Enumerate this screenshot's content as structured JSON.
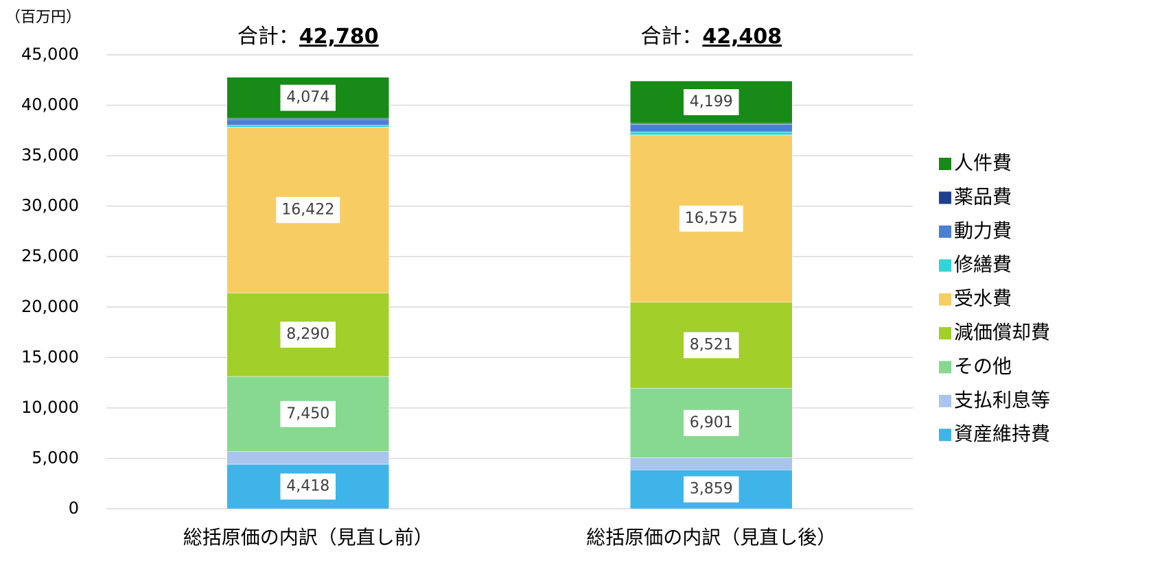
{
  "chart_data": {
    "type": "stacked_bar",
    "unit_label": "（百万円）",
    "categories": [
      "総括原価の内訳（見直し前）",
      "総括原価の内訳（見直し後）"
    ],
    "total_prefix": "合計：",
    "totals": [
      42780,
      42408
    ],
    "total_labels": [
      "42,780",
      "42,408"
    ],
    "series": [
      {
        "name": "資産維持費",
        "color": "#3fb4e8",
        "values": [
          4418,
          3859
        ],
        "value_labels": [
          "4,418",
          "3,859"
        ]
      },
      {
        "name": "支払利息等",
        "color": "#a9c4ee",
        "values": [
          1250,
          1200
        ],
        "value_labels": [
          null,
          null
        ]
      },
      {
        "name": "その他",
        "color": "#86d98f",
        "values": [
          7450,
          6901
        ],
        "value_labels": [
          "7,450",
          "6,901"
        ]
      },
      {
        "name": "減価償却費",
        "color": "#a2cf2a",
        "values": [
          8290,
          8521
        ],
        "value_labels": [
          "8,290",
          "8,521"
        ]
      },
      {
        "name": "受水費",
        "color": "#f7cd63",
        "values": [
          16422,
          16575
        ],
        "value_labels": [
          "16,422",
          "16,575"
        ]
      },
      {
        "name": "修繕費",
        "color": "#2fd6d8",
        "values": [
          200,
          300
        ],
        "value_labels": [
          null,
          null
        ]
      },
      {
        "name": "動力費",
        "color": "#4a7fd4",
        "values": [
          550,
          750
        ],
        "value_labels": [
          null,
          null
        ]
      },
      {
        "name": "薬品費",
        "color": "#1f3f8f",
        "values": [
          126,
          103
        ],
        "value_labels": [
          null,
          null
        ]
      },
      {
        "name": "人件費",
        "color": "#178a17",
        "values": [
          4074,
          4199
        ],
        "value_labels": [
          "4,074",
          "4,199"
        ]
      }
    ],
    "ylim": [
      0,
      45000
    ],
    "yticks": [
      0,
      {
        "value": 5000,
        "label": "5,000"
      },
      {
        "value": 10000,
        "label": "10,000"
      },
      {
        "value": 15000,
        "label": "15,000"
      },
      {
        "value": 20000,
        "label": "20,000"
      },
      {
        "value": 25000,
        "label": "25,000"
      },
      {
        "value": 30000,
        "label": "30,000"
      },
      {
        "value": 35000,
        "label": "35,000"
      },
      {
        "value": 40000,
        "label": "40,000"
      },
      {
        "value": 45000,
        "label": "45,000"
      }
    ],
    "grid": true,
    "legend": "right"
  }
}
